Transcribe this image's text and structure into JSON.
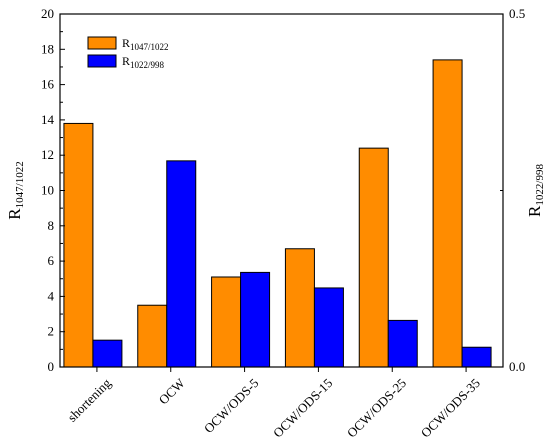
{
  "chart_data": {
    "type": "bar",
    "categories": [
      "shortening",
      "OCW",
      "OCW/ODS-5",
      "OCW/ODS-15",
      "OCW/ODS-25",
      "OCW/ODS-35"
    ],
    "series": [
      {
        "name": "R1047/1022",
        "name_main": "R",
        "name_sub": "1047/1022",
        "axis": "left",
        "color": "#FF8C00",
        "values": [
          13.8,
          3.5,
          5.1,
          6.7,
          12.4,
          17.4
        ]
      },
      {
        "name": "R1022/998",
        "name_main": "R",
        "name_sub": "1022/998",
        "axis": "right",
        "color": "#0000FF",
        "values": [
          0.038,
          0.292,
          0.134,
          0.112,
          0.066,
          0.028
        ]
      }
    ],
    "left_axis": {
      "label_main": "R",
      "label_sub": "1047/1022",
      "ylim": [
        0,
        20
      ],
      "ticks": [
        0,
        2,
        4,
        6,
        8,
        10,
        12,
        14,
        16,
        18,
        20
      ]
    },
    "right_axis": {
      "label_main": "R",
      "label_sub": "1022/998",
      "ylim": [
        0,
        0.5
      ],
      "ticks": [
        "0.0",
        "0.5"
      ],
      "tick_values": [
        0,
        0.5
      ]
    },
    "legend": {
      "position": "top-left"
    },
    "grid": false
  }
}
